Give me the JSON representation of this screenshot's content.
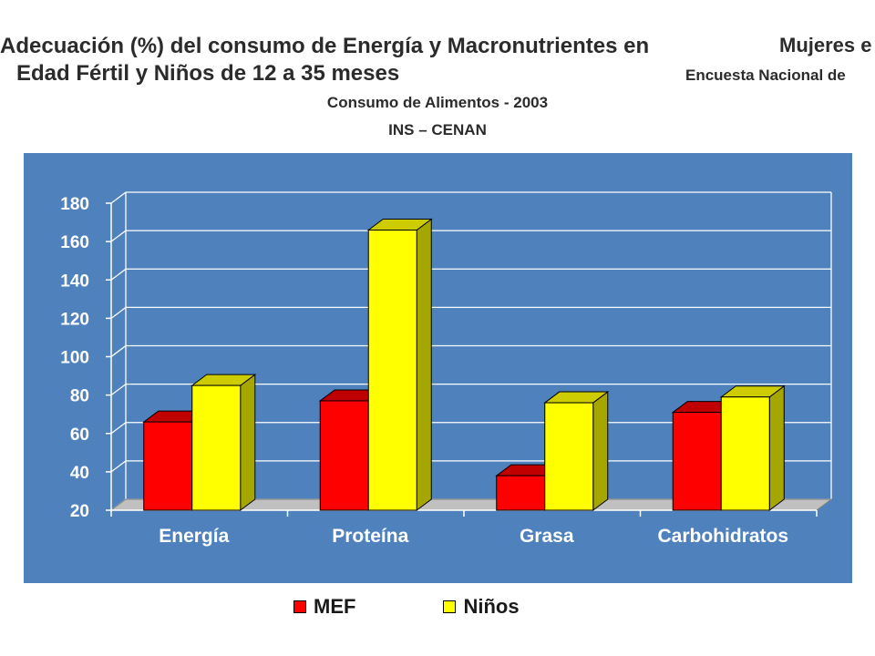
{
  "header": {
    "line1": "Adecuación (%) del consumo de Energía y Macronutrientes en",
    "line2": "Edad Fértil y Niños de 12 a 35 meses",
    "line3": "Mujeres e",
    "line4": "Encuesta Nacional de",
    "line5": "Consumo de Alimentos - 2003",
    "line6": "INS – CENAN"
  },
  "chart_data": {
    "type": "bar",
    "categories": [
      "Energía",
      "Proteína",
      "Grasa",
      "Carbohidratos"
    ],
    "series": [
      {
        "name": "MEF",
        "values": [
          66,
          77,
          38,
          71
        ],
        "color": "#ff0000",
        "top_color": "#c00000",
        "side_color": "#990000"
      },
      {
        "name": "Niños",
        "values": [
          85,
          166,
          76,
          79
        ],
        "color": "#ffff00",
        "top_color": "#cccc00",
        "side_color": "#a6a600"
      }
    ],
    "ylim": [
      20,
      180
    ],
    "yticks": [
      20,
      40,
      60,
      80,
      100,
      120,
      140,
      160,
      180
    ],
    "grid": true,
    "legend": "bottom",
    "background": "#4f81bd",
    "floor_color": "#c0c0c0"
  }
}
